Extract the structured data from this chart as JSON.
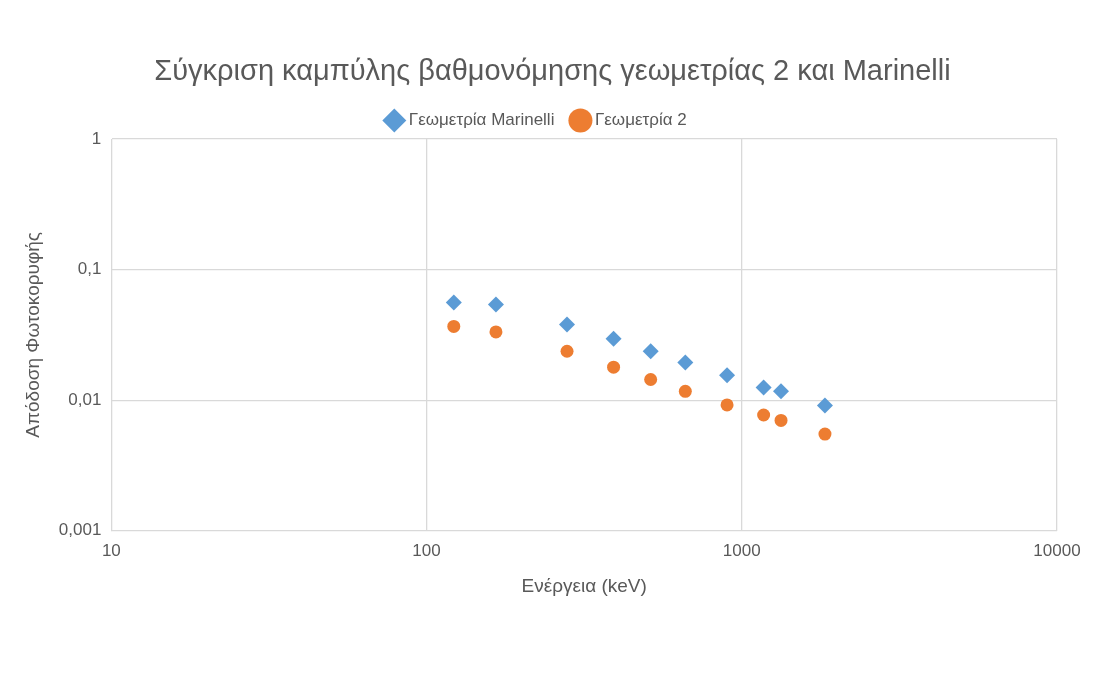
{
  "chart_data": {
    "type": "scatter",
    "title": "Σύγκριση καμπύλης βαθμονόμησης γεωμετρίας 2 και Marinelli",
    "xlabel": "Ενέργεια (keV)",
    "ylabel": "Απόδοση Φωτοκορυφής",
    "x": [
      122,
      166,
      279,
      392,
      514,
      662,
      898,
      1173,
      1332,
      1836
    ],
    "series": [
      {
        "name": "Γεωμετρία Marinelli",
        "color": "#5b9bd5",
        "marker": "diamond",
        "values": [
          0.056,
          0.054,
          0.038,
          0.0295,
          0.0237,
          0.0194,
          0.0155,
          0.0125,
          0.0117,
          0.0091
        ]
      },
      {
        "name": "Γεωμετρία 2",
        "color": "#ed7d31",
        "marker": "circle",
        "values": [
          0.0367,
          0.0333,
          0.0237,
          0.0179,
          0.0144,
          0.0117,
          0.0092,
          0.0077,
          0.007,
          0.0055
        ]
      }
    ],
    "log": "xy",
    "xlim": [
      10,
      10000
    ],
    "xticks": [
      10,
      100,
      1000,
      10000
    ],
    "ylim": [
      0.001,
      1
    ],
    "yticks": [
      {
        "value": 0.001,
        "label": "0,001"
      },
      {
        "value": 0.01,
        "label": "0,01"
      },
      {
        "value": 0.1,
        "label": "0,1"
      },
      {
        "value": 1,
        "label": "1"
      }
    ],
    "grid": true,
    "legend": "top"
  }
}
